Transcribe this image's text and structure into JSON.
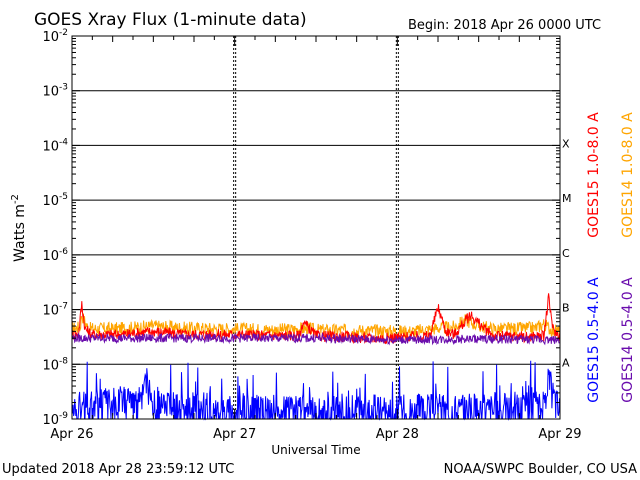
{
  "header": {
    "title": "GOES Xray Flux (1-minute data)",
    "begin_label": "Begin:  2018 Apr 26 0000 UTC"
  },
  "footer": {
    "updated": "Updated 2018 Apr 28 23:59:12 UTC",
    "credit": "NOAA/SWPC Boulder, CO USA"
  },
  "chart_data": {
    "type": "line",
    "title": "GOES Xray Flux (1-minute data)",
    "xlabel": "Universal Time",
    "ylabel": "Watts m",
    "ylabel_sup": "-2",
    "yscale": "log",
    "ylim": [
      1e-09,
      0.01
    ],
    "xlim_days": [
      0,
      3
    ],
    "x_ticks": [
      "Apr 26",
      "Apr 27",
      "Apr 28",
      "Apr 29"
    ],
    "y_ticks": [
      {
        "base": "10",
        "exp": "-9"
      },
      {
        "base": "10",
        "exp": "-8"
      },
      {
        "base": "10",
        "exp": "-7"
      },
      {
        "base": "10",
        "exp": "-6"
      },
      {
        "base": "10",
        "exp": "-5"
      },
      {
        "base": "10",
        "exp": "-4"
      },
      {
        "base": "10",
        "exp": "-3"
      },
      {
        "base": "10",
        "exp": "-2"
      }
    ],
    "flare_classes": [
      {
        "label": "A",
        "flux": 1e-08
      },
      {
        "label": "B",
        "flux": 1e-07
      },
      {
        "label": "C",
        "flux": 1e-06
      },
      {
        "label": "M",
        "flux": 1e-05
      },
      {
        "label": "X",
        "flux": 0.0001
      }
    ],
    "legend_right": [
      {
        "text": "GOES15 1.0-8.0 A",
        "color": "#ff0000"
      },
      {
        "text": "GOES14 1.0-8.0 A",
        "color": "#ffa500"
      },
      {
        "text": "GOES15 0.5-4.0 A",
        "color": "#0000ff"
      },
      {
        "text": "GOES14 0.5-4.0 A",
        "color": "#6a0dad"
      }
    ],
    "series": [
      {
        "name": "GOES14 1.0-8.0 A",
        "color": "#ffa500",
        "x": [
          0,
          0.05,
          0.06,
          0.1,
          0.3,
          0.5,
          0.7,
          1.0,
          1.3,
          1.45,
          1.5,
          1.7,
          1.9,
          2.1,
          2.25,
          2.35,
          2.42,
          2.5,
          2.6,
          2.75,
          2.85,
          2.9,
          2.95,
          3.0
        ],
        "y": [
          4.5e-08,
          4.8e-08,
          8e-08,
          4.5e-08,
          4.5e-08,
          5e-08,
          4.6e-08,
          4.4e-08,
          4.3e-08,
          4.5e-08,
          4.2e-08,
          4.2e-08,
          4.1e-08,
          4e-08,
          4.6e-08,
          4.8e-08,
          6.5e-08,
          5e-08,
          4.4e-08,
          4.5e-08,
          4.6e-08,
          5.5e-08,
          4.2e-08,
          4e-08
        ]
      },
      {
        "name": "GOES15 1.0-8.0 A",
        "color": "#ff0000",
        "x": [
          0,
          0.04,
          0.06,
          0.08,
          0.12,
          0.3,
          0.5,
          0.7,
          1.0,
          1.4,
          1.42,
          1.5,
          1.7,
          1.8,
          1.9,
          2.0,
          2.1,
          2.2,
          2.25,
          2.3,
          2.35,
          2.45,
          2.55,
          2.6,
          2.8,
          2.9,
          2.93,
          2.96,
          3.0
        ],
        "y": [
          3.5e-08,
          3.5e-08,
          1.3e-07,
          4.5e-08,
          3.5e-08,
          3.5e-08,
          4e-08,
          3.5e-08,
          3.5e-08,
          3.3e-08,
          6e-08,
          3.3e-08,
          3.2e-08,
          3e-08,
          3e-08,
          3.1e-08,
          3.2e-08,
          3.3e-08,
          1.1e-07,
          4e-08,
          3.5e-08,
          8e-08,
          4e-08,
          3.3e-08,
          3.2e-08,
          3.3e-08,
          1.6e-07,
          4e-08,
          3.3e-08
        ]
      },
      {
        "name": "GOES14 0.5-4.0 A",
        "color": "#6a0dad",
        "x": [
          0,
          0.5,
          1.0,
          1.5,
          2.0,
          2.5,
          3.0
        ],
        "y": [
          3e-08,
          3e-08,
          3e-08,
          3e-08,
          2.8e-08,
          2.9e-08,
          2.8e-08
        ]
      },
      {
        "name": "GOES15 0.5-4.0 A",
        "color": "#0000ff",
        "x": [
          0,
          0.44,
          0.45,
          0.5,
          1.0,
          1.5,
          1.9,
          2.5,
          2.9,
          2.92,
          3.0
        ],
        "y": [
          1.5e-09,
          2e-09,
          5e-09,
          1.5e-09,
          1.3e-09,
          1.2e-09,
          1.3e-09,
          1.4e-09,
          1.5e-09,
          5e-09,
          1.3e-09
        ]
      }
    ]
  }
}
